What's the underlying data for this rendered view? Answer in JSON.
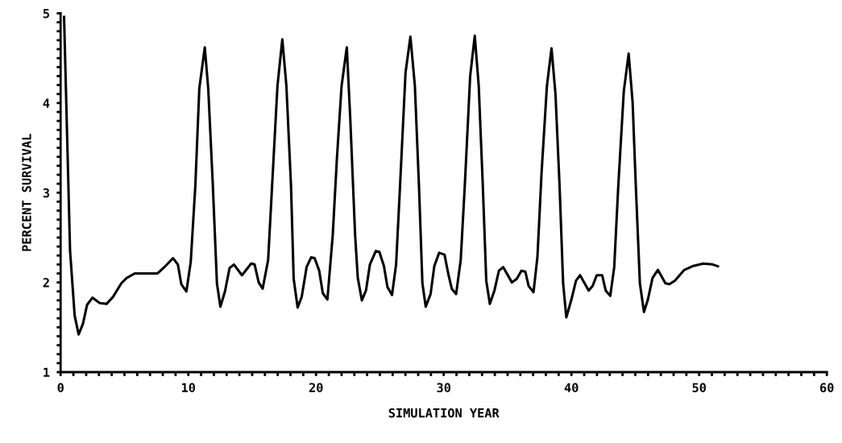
{
  "chart_data": {
    "type": "line",
    "xlabel": "SIMULATION YEAR",
    "ylabel": "PERCENT SURVIVAL",
    "xlim": [
      0,
      60
    ],
    "ylim": [
      1,
      5
    ],
    "xticks": [
      0,
      {
        "value": 1,
        "label": null
      },
      {
        "value": 2,
        "label": null
      },
      {
        "value": 3,
        "label": null
      },
      {
        "value": 4,
        "label": null
      },
      {
        "value": 5,
        "label": null
      },
      {
        "value": 6,
        "label": null
      },
      {
        "value": 7,
        "label": null
      },
      {
        "value": 8,
        "label": null
      },
      {
        "value": 9,
        "label": null
      },
      10,
      {
        "value": 11,
        "label": null
      },
      {
        "value": 12,
        "label": null
      },
      {
        "value": 13,
        "label": null
      },
      {
        "value": 14,
        "label": null
      },
      {
        "value": 15,
        "label": null
      },
      {
        "value": 16,
        "label": null
      },
      {
        "value": 17,
        "label": null
      },
      {
        "value": 18,
        "label": null
      },
      {
        "value": 19,
        "label": null
      },
      20,
      {
        "value": 21,
        "label": null
      },
      {
        "value": 22,
        "label": null
      },
      {
        "value": 23,
        "label": null
      },
      {
        "value": 24,
        "label": null
      },
      {
        "value": 25,
        "label": null
      },
      {
        "value": 26,
        "label": null
      },
      {
        "value": 27,
        "label": null
      },
      {
        "value": 28,
        "label": null
      },
      {
        "value": 29,
        "label": null
      },
      30,
      {
        "value": 31,
        "label": null
      },
      {
        "value": 32,
        "label": null
      },
      {
        "value": 33,
        "label": null
      },
      {
        "value": 34,
        "label": null
      },
      {
        "value": 35,
        "label": null
      },
      {
        "value": 36,
        "label": null
      },
      {
        "value": 37,
        "label": null
      },
      {
        "value": 38,
        "label": null
      },
      {
        "value": 39,
        "label": null
      },
      40,
      {
        "value": 41,
        "label": null
      },
      {
        "value": 42,
        "label": null
      },
      {
        "value": 43,
        "label": null
      },
      {
        "value": 44,
        "label": null
      },
      {
        "value": 45,
        "label": null
      },
      {
        "value": 46,
        "label": null
      },
      {
        "value": 47,
        "label": null
      },
      {
        "value": 48,
        "label": null
      },
      {
        "value": 49,
        "label": null
      },
      50,
      {
        "value": 51,
        "label": null
      },
      {
        "value": 52,
        "label": null
      },
      {
        "value": 53,
        "label": null
      },
      {
        "value": 54,
        "label": null
      },
      {
        "value": 55,
        "label": null
      },
      {
        "value": 56,
        "label": null
      },
      {
        "value": 57,
        "label": null
      },
      {
        "value": 58,
        "label": null
      },
      {
        "value": 59,
        "label": null
      },
      60
    ],
    "yticks": [
      1,
      {
        "value": 1.1,
        "label": null
      },
      {
        "value": 1.2,
        "label": null
      },
      {
        "value": 1.3,
        "label": null
      },
      {
        "value": 1.4,
        "label": null
      },
      {
        "value": 1.5,
        "label": null
      },
      {
        "value": 1.6,
        "label": null
      },
      {
        "value": 1.7,
        "label": null
      },
      {
        "value": 1.8,
        "label": null
      },
      {
        "value": 1.9,
        "label": null
      },
      2,
      {
        "value": 2.1,
        "label": null
      },
      {
        "value": 2.2,
        "label": null
      },
      {
        "value": 2.3,
        "label": null
      },
      {
        "value": 2.4,
        "label": null
      },
      {
        "value": 2.5,
        "label": null
      },
      {
        "value": 2.6,
        "label": null
      },
      {
        "value": 2.7,
        "label": null
      },
      {
        "value": 2.8,
        "label": null
      },
      {
        "value": 2.9,
        "label": null
      },
      3,
      {
        "value": 3.1,
        "label": null
      },
      {
        "value": 3.2,
        "label": null
      },
      {
        "value": 3.3,
        "label": null
      },
      {
        "value": 3.4,
        "label": null
      },
      {
        "value": 3.5,
        "label": null
      },
      {
        "value": 3.6,
        "label": null
      },
      {
        "value": 3.7,
        "label": null
      },
      {
        "value": 3.8,
        "label": null
      },
      {
        "value": 3.9,
        "label": null
      },
      4,
      {
        "value": 4.1,
        "label": null
      },
      {
        "value": 4.2,
        "label": null
      },
      {
        "value": 4.3,
        "label": null
      },
      {
        "value": 4.4,
        "label": null
      },
      {
        "value": 4.5,
        "label": null
      },
      {
        "value": 4.6,
        "label": null
      },
      {
        "value": 4.7,
        "label": null
      },
      {
        "value": 4.8,
        "label": null
      },
      {
        "value": 4.9,
        "label": null
      },
      5
    ],
    "marker": "none",
    "line_style": "solid",
    "series": [
      {
        "color": "#000000",
        "x": [
          0.27,
          0.74,
          1.1,
          1.41,
          1.75,
          2.07,
          2.49,
          3.06,
          3.59,
          4.11,
          4.75,
          5.17,
          5.8,
          7.59,
          8.12,
          8.8,
          9.18,
          9.45,
          9.85,
          10.19,
          10.55,
          10.86,
          11.29,
          11.56,
          11.92,
          12.24,
          12.51,
          12.87,
          13.23,
          13.57,
          14.2,
          14.92,
          15.19,
          15.51,
          15.82,
          16.25,
          16.56,
          16.98,
          17.36,
          17.68,
          18.04,
          18.25,
          18.56,
          18.88,
          19.26,
          19.62,
          19.89,
          20.25,
          20.53,
          20.89,
          21.31,
          21.63,
          22.0,
          22.41,
          22.68,
          23.06,
          23.27,
          23.59,
          23.91,
          24.22,
          24.68,
          24.96,
          25.32,
          25.59,
          25.95,
          26.27,
          26.58,
          27.01,
          27.39,
          27.74,
          28.06,
          28.33,
          28.59,
          28.97,
          29.26,
          29.64,
          30.06,
          30.38,
          30.63,
          30.97,
          31.33,
          31.65,
          32.07,
          32.43,
          32.74,
          33.06,
          33.33,
          33.61,
          33.97,
          34.32,
          34.66,
          35.34,
          35.72,
          36.08,
          36.39,
          36.65,
          37.03,
          37.34,
          37.66,
          38.08,
          38.44,
          38.75,
          39.07,
          39.35,
          39.6,
          40.0,
          40.36,
          40.68,
          41.35,
          41.66,
          41.98,
          42.41,
          42.68,
          43.04,
          43.35,
          43.67,
          44.1,
          44.48,
          44.79,
          45.04,
          45.36,
          45.68,
          45.99,
          46.35,
          46.77,
          47.36,
          47.68,
          48.1,
          48.84,
          49.47,
          50.32,
          51.06,
          51.47
        ],
        "values": [
          4.96,
          2.35,
          1.63,
          1.42,
          1.54,
          1.75,
          1.83,
          1.77,
          1.76,
          1.84,
          1.99,
          2.05,
          2.1,
          2.1,
          2.17,
          2.27,
          2.2,
          1.98,
          1.9,
          2.23,
          3.08,
          4.16,
          4.62,
          4.16,
          3.08,
          1.99,
          1.73,
          1.9,
          2.16,
          2.2,
          2.08,
          2.21,
          2.2,
          2.0,
          1.93,
          2.25,
          3.08,
          4.19,
          4.71,
          4.19,
          3.08,
          2.04,
          1.72,
          1.84,
          2.17,
          2.28,
          2.27,
          2.13,
          1.88,
          1.81,
          2.53,
          3.37,
          4.19,
          4.62,
          3.83,
          2.53,
          2.05,
          1.8,
          1.91,
          2.2,
          2.35,
          2.34,
          2.18,
          1.95,
          1.86,
          2.2,
          3.08,
          4.34,
          4.74,
          4.19,
          3.08,
          1.99,
          1.73,
          1.87,
          2.18,
          2.33,
          2.31,
          2.08,
          1.93,
          1.87,
          2.25,
          3.08,
          4.3,
          4.75,
          4.19,
          3.08,
          2.02,
          1.76,
          1.91,
          2.13,
          2.17,
          2.0,
          2.04,
          2.13,
          2.12,
          1.96,
          1.89,
          2.29,
          3.22,
          4.19,
          4.61,
          4.1,
          3.08,
          1.99,
          1.61,
          1.81,
          2.02,
          2.08,
          1.91,
          1.96,
          2.08,
          2.08,
          1.91,
          1.85,
          2.17,
          3.08,
          4.13,
          4.55,
          4.01,
          3.08,
          1.99,
          1.67,
          1.81,
          2.05,
          2.14,
          1.99,
          1.98,
          2.02,
          2.14,
          2.18,
          2.21,
          2.2,
          2.18
        ]
      }
    ]
  }
}
